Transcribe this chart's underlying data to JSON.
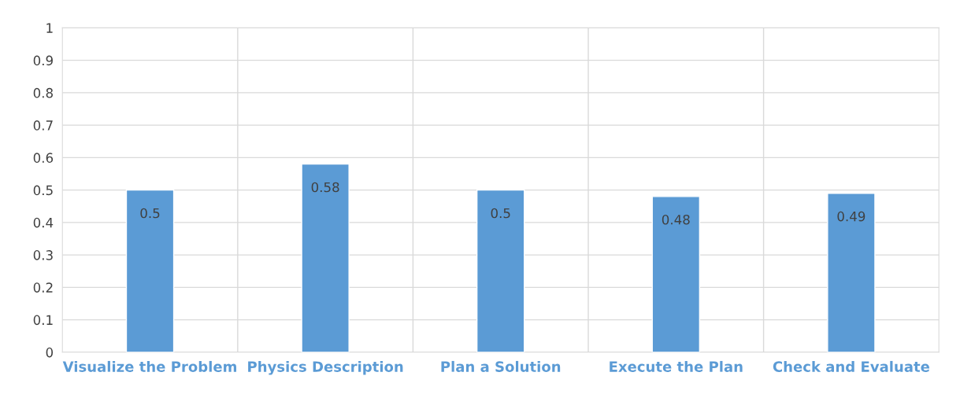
{
  "chart_data": {
    "type": "bar",
    "categories": [
      "Visualize the Problem",
      "Physics Description",
      "Plan a Solution",
      "Execute the Plan",
      "Check and Evaluate"
    ],
    "values": [
      0.5,
      0.58,
      0.5,
      0.48,
      0.49
    ],
    "color": "#5b9bd5",
    "ylim": [
      0,
      1
    ],
    "yticks": [
      0,
      0.1,
      0.2,
      0.3,
      0.4,
      0.5,
      0.6,
      0.7,
      0.8,
      0.9,
      1
    ],
    "grid": true,
    "data_labels": true
  }
}
